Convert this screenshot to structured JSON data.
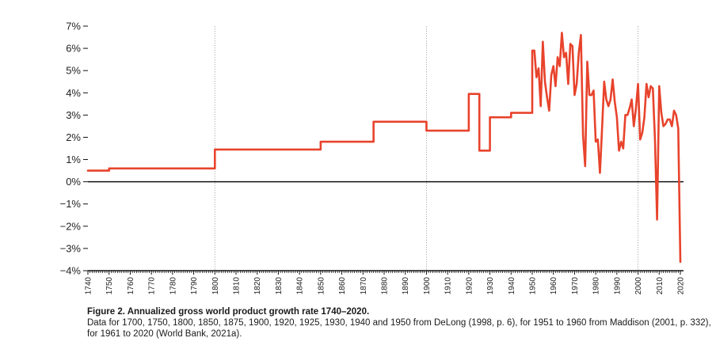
{
  "chart_data": {
    "type": "line",
    "title": "",
    "xlabel": "",
    "ylabel": "",
    "xlim": [
      1740,
      2020
    ],
    "ylim": [
      -4,
      7
    ],
    "y_ticks": [
      -4,
      -3,
      -2,
      -1,
      0,
      1,
      2,
      3,
      4,
      5,
      6,
      7
    ],
    "y_tick_labels": [
      "−4%",
      "−3%",
      "−2%",
      "−1%",
      "0%",
      "1%",
      "2%",
      "3%",
      "4%",
      "5%",
      "6%",
      "7%"
    ],
    "x_ticks": [
      1740,
      1750,
      1760,
      1770,
      1780,
      1790,
      1800,
      1810,
      1820,
      1830,
      1840,
      1850,
      1860,
      1870,
      1880,
      1890,
      1900,
      1910,
      1920,
      1930,
      1940,
      1950,
      1960,
      1970,
      1980,
      1990,
      2000,
      2010,
      2020
    ],
    "x_tick_labels": [
      "1740",
      "1750",
      "1760",
      "1770",
      "1780",
      "1790",
      "1800",
      "1810",
      "1820",
      "1830",
      "1840",
      "1850",
      "1860",
      "1870",
      "1880",
      "1890",
      "1900",
      "1910",
      "1920",
      "1930",
      "1940",
      "1950",
      "1960",
      "1970",
      "1980",
      "1990",
      "2000",
      "2010",
      "2020"
    ],
    "vertical_reference_lines": [
      1800,
      1900,
      2000
    ],
    "zero_line": true,
    "line_color": "#e8432c",
    "series": [
      {
        "x": [
          1740,
          1750,
          1750,
          1800,
          1800,
          1850,
          1850,
          1875,
          1875,
          1900,
          1900,
          1920,
          1920,
          1925,
          1925,
          1930,
          1930,
          1940,
          1940,
          1950,
          1950,
          1951,
          1952,
          1953,
          1954,
          1955,
          1956,
          1957,
          1958,
          1959,
          1960,
          1961,
          1962,
          1963,
          1964,
          1965,
          1966,
          1967,
          1968,
          1969,
          1970,
          1971,
          1972,
          1973,
          1974,
          1975,
          1976,
          1977,
          1978,
          1979,
          1980,
          1981,
          1982,
          1983,
          1984,
          1985,
          1986,
          1987,
          1988,
          1989,
          1990,
          1991,
          1992,
          1993,
          1994,
          1995,
          1996,
          1997,
          1998,
          1999,
          2000,
          2001,
          2002,
          2003,
          2004,
          2005,
          2006,
          2007,
          2008,
          2009,
          2010,
          2011,
          2012,
          2013,
          2014,
          2015,
          2016,
          2017,
          2018,
          2019,
          2020
        ],
        "y": [
          0.5,
          0.5,
          0.6,
          0.6,
          1.45,
          1.45,
          1.8,
          1.8,
          2.7,
          2.7,
          2.3,
          2.3,
          3.95,
          3.95,
          1.4,
          1.4,
          2.9,
          2.9,
          3.1,
          3.1,
          5.9,
          5.9,
          4.7,
          5.1,
          3.4,
          6.3,
          4.5,
          3.8,
          3.2,
          4.8,
          5.2,
          4.3,
          5.6,
          5.2,
          6.7,
          5.6,
          5.8,
          4.4,
          6.2,
          6.1,
          3.9,
          4.4,
          5.8,
          6.6,
          2.1,
          0.7,
          5.4,
          3.9,
          3.9,
          4.1,
          1.8,
          1.9,
          0.4,
          2.4,
          4.5,
          3.7,
          3.4,
          3.7,
          4.6,
          3.6,
          2.9,
          1.4,
          1.8,
          1.5,
          3.0,
          3.0,
          3.3,
          3.7,
          2.5,
          3.3,
          4.4,
          1.9,
          2.2,
          2.9,
          4.4,
          3.8,
          4.3,
          4.2,
          1.9,
          -1.7,
          4.3,
          3.1,
          2.5,
          2.6,
          2.8,
          2.8,
          2.5,
          3.2,
          3.0,
          2.4,
          -3.6
        ]
      }
    ]
  },
  "caption": {
    "title": "Figure 2. Annualized gross world product growth rate 1740–2020.",
    "note": "Data for 1700, 1750, 1800, 1850, 1875, 1900, 1920, 1925, 1930, 1940 and 1950 from DeLong (1998, p. 6), for 1951 to 1960 from Maddison (2001, p. 332), for 1961 to 2020 (World Bank, 2021a)."
  }
}
